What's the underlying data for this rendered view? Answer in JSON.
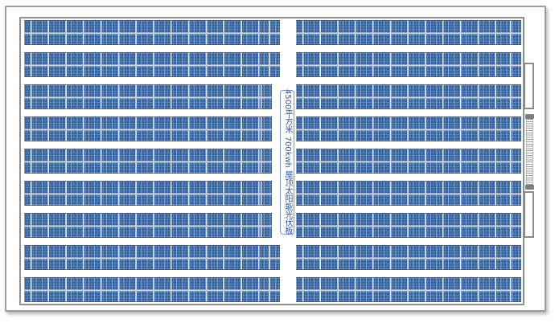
{
  "diagram": {
    "center_label": "4500平方米 700kwh 屋顶太阳能光伏板",
    "left_array": {
      "rows": 9,
      "short_rows": [
        3,
        4,
        5,
        6,
        7
      ]
    },
    "right_array": {
      "rows": 9
    },
    "fixtures": [
      "roof-hatch-top",
      "ladder",
      "roof-hatch-bottom"
    ],
    "colors": {
      "panel_blue": "#30609f",
      "panel_module_line": "#dce6f0",
      "panel_mid_band": "#c8d4e4",
      "roof_frame_gray": "#8f8f8f",
      "outer_border_gray": "#9c9c9c",
      "label_text_blue": "#2f55a5",
      "label_border_blue": "#8096c8",
      "hatch_border_gray": "#8a8a8a",
      "ladder_cap_gray": "#7d7d7d",
      "ladder_rung_gray": "#a0a0a0"
    }
  }
}
